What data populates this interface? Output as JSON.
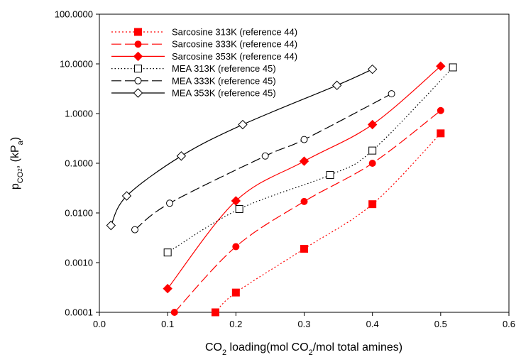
{
  "chart_data": {
    "type": "line",
    "xlabel": {
      "main": "CO",
      "sub": "2",
      "rest": " loading(mol CO",
      "sub2": "2",
      "rest2": "/mol total amines)"
    },
    "ylabel": {
      "p": "p",
      "sub": "CO",
      "subsub": "2",
      "mid": ", (kP",
      "sub3": "a",
      "end": ")"
    },
    "xlim": [
      0.0,
      0.6
    ],
    "ylim": [
      0.0001,
      100
    ],
    "yscale": "log",
    "xticks": [
      "0.0",
      "0.1",
      "0.2",
      "0.3",
      "0.4",
      "0.5",
      "0.6"
    ],
    "yticks": [
      "0.0001",
      "0.0010",
      "0.0100",
      "0.1000",
      "1.0000",
      "10.0000",
      "100.0000"
    ],
    "grid": false,
    "legend_position": "top-left",
    "series": [
      {
        "name": "Sarcosine 313K (reference 44)",
        "color": "#ff0000",
        "dash": "2,3",
        "marker": "square-filled",
        "x": [
          0.17,
          0.2,
          0.3,
          0.4,
          0.5
        ],
        "y": [
          0.0001,
          0.00025,
          0.0019,
          0.015,
          0.4
        ]
      },
      {
        "name": "Sarcosine 333K (reference 44)",
        "color": "#ff0000",
        "dash": "14,5",
        "marker": "circle-filled",
        "x": [
          0.11,
          0.2,
          0.3,
          0.4,
          0.5
        ],
        "y": [
          0.0001,
          0.0021,
          0.017,
          0.1,
          1.15
        ]
      },
      {
        "name": "Sarcosine 353K (reference 44)",
        "color": "#ff0000",
        "dash": "",
        "marker": "diamond-filled",
        "x": [
          0.1,
          0.2,
          0.3,
          0.4,
          0.5
        ],
        "y": [
          0.0003,
          0.0175,
          0.11,
          0.6,
          9.0
        ]
      },
      {
        "name": "MEA 313K (reference 45)",
        "color": "#000000",
        "dash": "1.5,3",
        "marker": "square-open",
        "x": [
          0.1,
          0.205,
          0.338,
          0.4,
          0.518
        ],
        "y": [
          0.0016,
          0.012,
          0.058,
          0.18,
          8.5
        ]
      },
      {
        "name": "MEA 333K (reference 45)",
        "color": "#000000",
        "dash": "14,5",
        "marker": "circle-open",
        "x": [
          0.052,
          0.103,
          0.243,
          0.3,
          0.428
        ],
        "y": [
          0.0046,
          0.0157,
          0.14,
          0.3,
          2.5
        ]
      },
      {
        "name": "MEA 353K (reference 45)",
        "color": "#000000",
        "dash": "",
        "marker": "diamond-open",
        "x": [
          0.017,
          0.04,
          0.12,
          0.21,
          0.348,
          0.4
        ],
        "y": [
          0.0056,
          0.022,
          0.14,
          0.6,
          3.7,
          7.8
        ]
      }
    ]
  }
}
